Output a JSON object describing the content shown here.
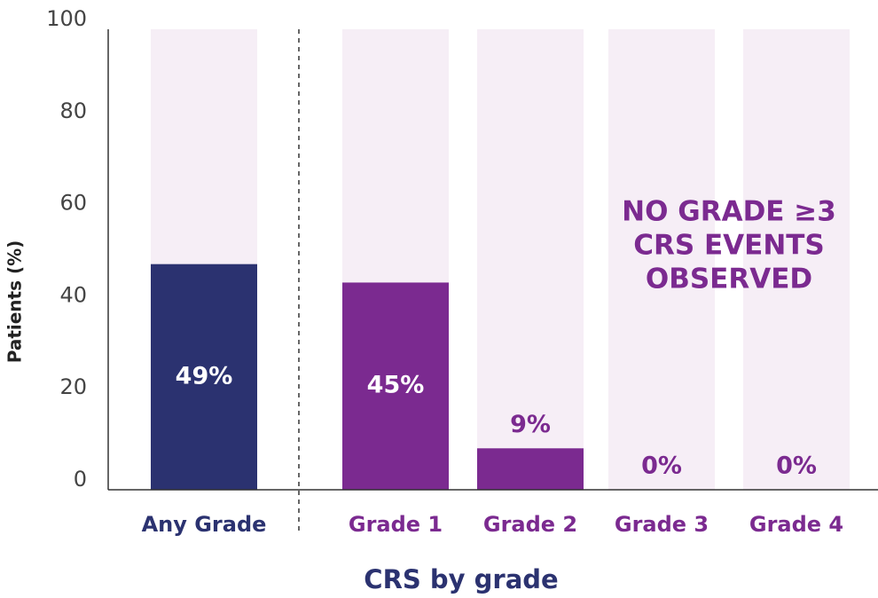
{
  "chart_data": {
    "type": "bar",
    "categories": [
      "Any Grade",
      "Grade 1",
      "Grade 2",
      "Grade 3",
      "Grade 4"
    ],
    "values": [
      49,
      45,
      9,
      0,
      0
    ],
    "value_labels": [
      "49%",
      "45%",
      "9%",
      "0%",
      "0%"
    ],
    "colors": [
      "#2b3270",
      "#7b2a90",
      "#7b2a90",
      "#7b2a90",
      "#7b2a90"
    ],
    "background_color": "#f6eef6",
    "ylim": [
      0,
      100
    ],
    "yticks": [
      0,
      20,
      40,
      60,
      80,
      100
    ],
    "y_label": "Patients (%)",
    "x_label": "CRS by grade",
    "annotation": [
      "NO GRADE ≥3",
      "CRS EVENTS",
      "OBSERVED"
    ]
  }
}
